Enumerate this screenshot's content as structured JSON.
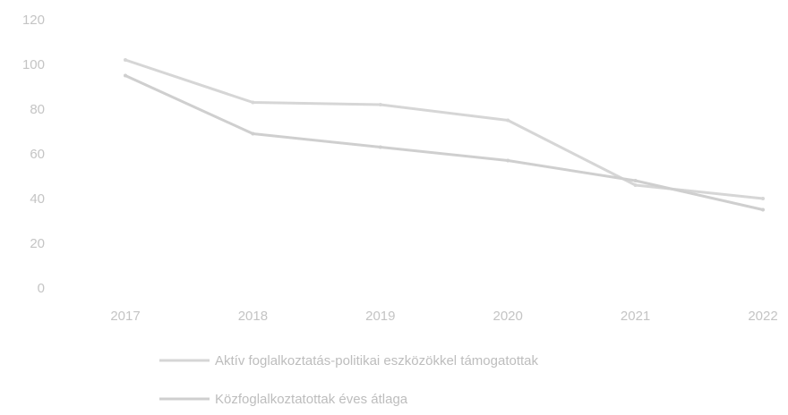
{
  "chart_data": {
    "type": "line",
    "title": "",
    "xlabel": "",
    "ylabel": "",
    "categories": [
      "2017",
      "2018",
      "2019",
      "2020",
      "2021",
      "2022"
    ],
    "ylim": [
      0,
      120
    ],
    "yticks": [
      0,
      20,
      40,
      60,
      80,
      100,
      120
    ],
    "grid": false,
    "legend_position": "bottom",
    "series": [
      {
        "name": "Aktív foglalkoztatás-politikai eszközökkel támogatottak",
        "values": [
          102,
          83,
          82,
          75,
          46,
          40
        ],
        "color": "#d6d6d6"
      },
      {
        "name": "Közfoglalkoztatottak éves átlaga",
        "values": [
          95,
          69,
          63,
          57,
          48,
          35
        ],
        "color": "#cfcfcf"
      }
    ]
  }
}
